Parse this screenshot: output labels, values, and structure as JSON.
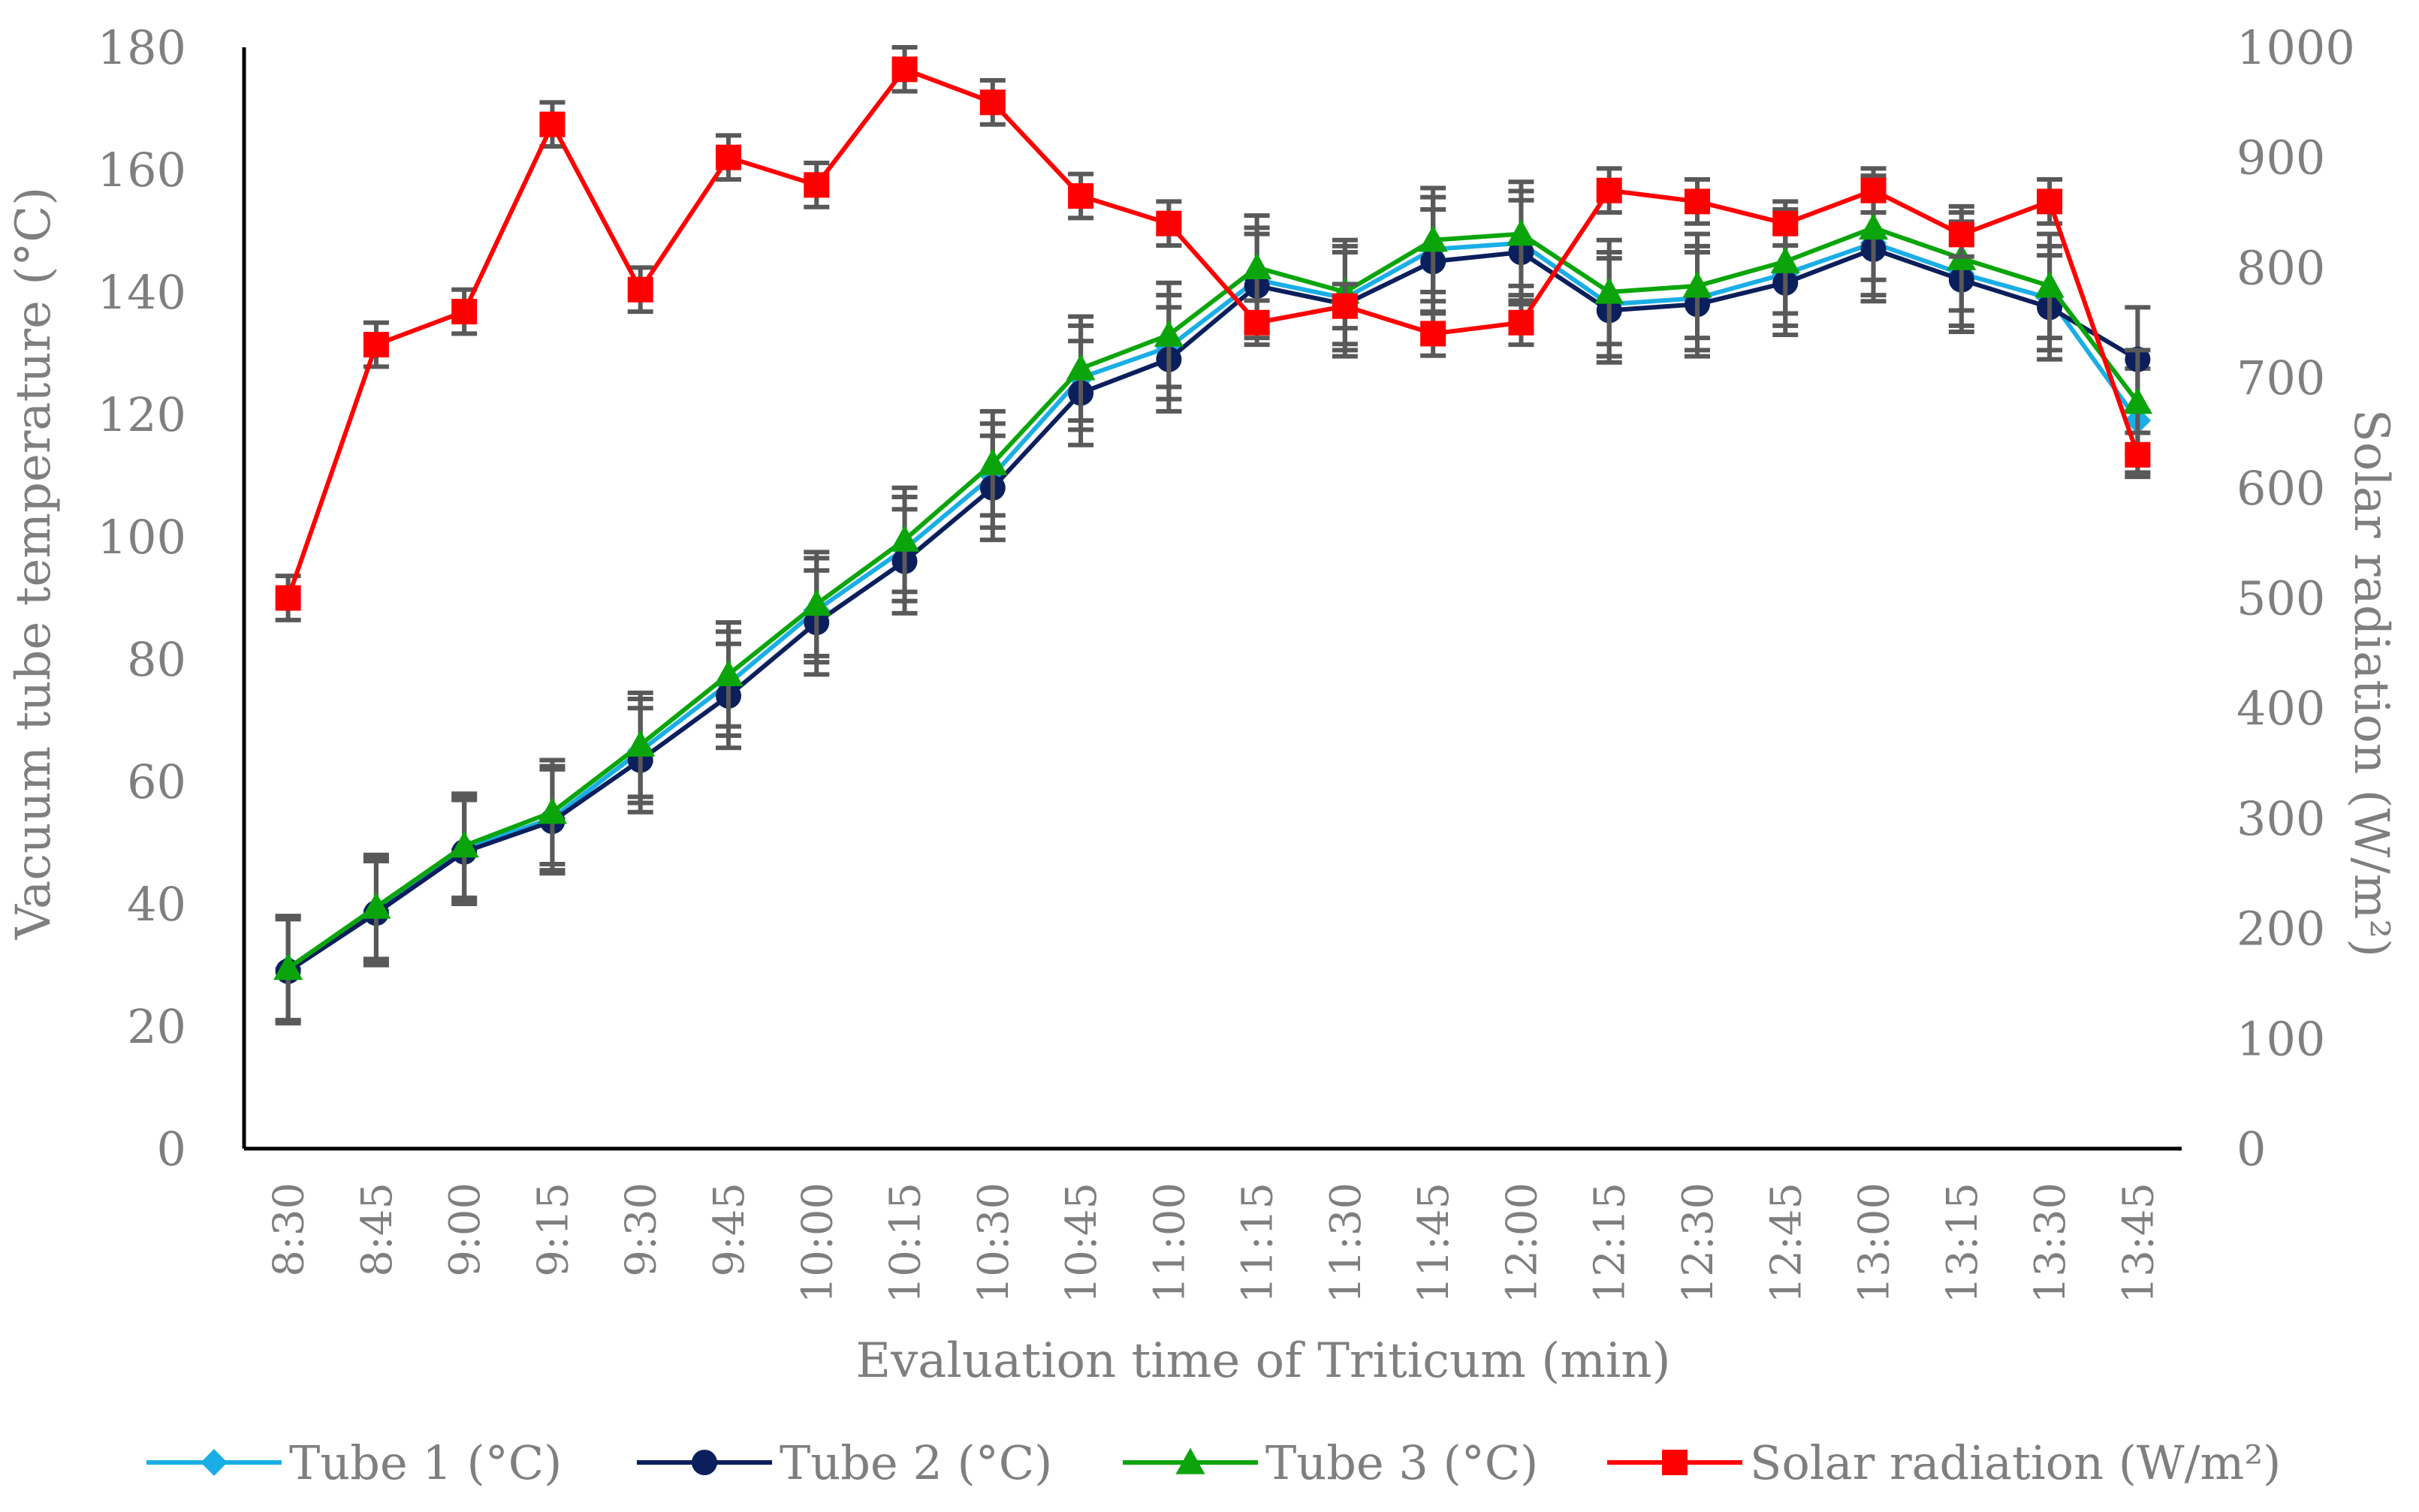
{
  "chart_data": {
    "type": "line",
    "title": "",
    "xlabel": "Evaluation time of Triticum (min)",
    "ylabel": "Vacuum tube temperature (°C)",
    "y2label": "Solar radiation (W/m²)",
    "ylim": [
      0,
      180
    ],
    "y2lim": [
      0,
      1000
    ],
    "yticks": [
      "0",
      "20",
      "40",
      "60",
      "80",
      "100",
      "120",
      "140",
      "160",
      "180"
    ],
    "y2ticks": [
      "0",
      "100",
      "200",
      "300",
      "400",
      "500",
      "600",
      "700",
      "800",
      "900",
      "1000"
    ],
    "categories": [
      "8:30",
      "8:45",
      "9:00",
      "9:15",
      "9:30",
      "9:45",
      "10:00",
      "10:15",
      "10:30",
      "10:45",
      "11:00",
      "11:15",
      "11:30",
      "11:45",
      "12:00",
      "12:15",
      "12:30",
      "12:45",
      "13:00",
      "13:15",
      "13:30",
      "13:45"
    ],
    "legend_position": "bottom",
    "series": [
      {
        "name": "Tube 1 (°C)",
        "axis": "left",
        "color": "#1AAEE6",
        "marker": "diamond",
        "values": [
          29.5,
          39,
          49,
          54,
          65,
          76,
          88,
          98,
          110,
          126,
          131,
          142,
          139,
          147,
          148,
          138,
          139,
          143,
          148,
          143,
          139,
          119
        ],
        "error": [
          8.5,
          8.5,
          8.5,
          8.5,
          8.5,
          8.5,
          8.5,
          8.5,
          8.5,
          8.5,
          8.5,
          8.5,
          8.5,
          8.5,
          8.5,
          8.5,
          8.5,
          8.5,
          8.5,
          8.5,
          8.5,
          8.5
        ]
      },
      {
        "name": "Tube 2 (°C)",
        "axis": "left",
        "color": "#0B1F5C",
        "marker": "circle",
        "values": [
          29,
          38.5,
          48.5,
          53.5,
          63.5,
          74,
          86,
          96,
          108,
          123.5,
          129,
          141,
          138,
          145,
          146.5,
          137,
          138,
          141.5,
          147,
          142,
          137.5,
          129
        ],
        "error": [
          8.5,
          8.5,
          8.5,
          8.5,
          8.5,
          8.5,
          8.5,
          8.5,
          8.5,
          8.5,
          8.5,
          8.5,
          8.5,
          8.5,
          8.5,
          8.5,
          8.5,
          8.5,
          8.5,
          8.5,
          8.5,
          8.5
        ]
      },
      {
        "name": "Tube 3 (°C)",
        "axis": "left",
        "color": "#0BA50B",
        "marker": "triangle",
        "values": [
          29.5,
          39.5,
          49.5,
          55,
          66,
          77.5,
          89,
          99.5,
          112,
          127.5,
          133,
          144,
          140,
          148.5,
          149.5,
          140,
          141,
          145,
          150.5,
          145.5,
          141,
          122
        ],
        "error": [
          8.5,
          8.5,
          8.5,
          8.5,
          8.5,
          8.5,
          8.5,
          8.5,
          8.5,
          8.5,
          8.5,
          8.5,
          8.5,
          8.5,
          8.5,
          8.5,
          8.5,
          8.5,
          8.5,
          8.5,
          8.5,
          8.5
        ]
      },
      {
        "name": "Solar radiation (W/m²)",
        "axis": "right",
        "color": "#FF0000",
        "marker": "square",
        "values": [
          500,
          730,
          760,
          930,
          780,
          900,
          875,
          980,
          950,
          865,
          840,
          750,
          765,
          740,
          750,
          870,
          860,
          840,
          870,
          830,
          860,
          630
        ],
        "error": [
          20,
          20,
          20,
          20,
          20,
          20,
          20,
          20,
          20,
          20,
          20,
          20,
          20,
          20,
          20,
          20,
          20,
          20,
          20,
          20,
          20,
          20
        ]
      }
    ]
  }
}
